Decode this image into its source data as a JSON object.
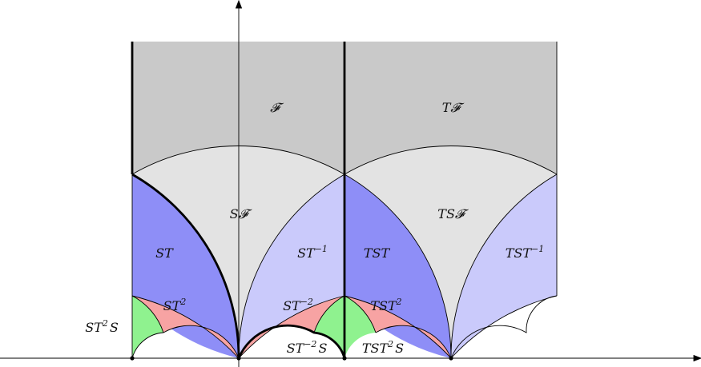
{
  "colors": {
    "fundamental_domain": "#c9c9c9",
    "s_images": "#e3e3e3",
    "st_dark": "#8e8ef7",
    "st_light": "#cacafb",
    "st_squared": "#f7a3a3",
    "st_squared_s": "#8ff28f",
    "boundary_stroke": "#000000",
    "axis_stroke": "#000000"
  },
  "regions": [
    {
      "id": "F",
      "label": "𝓕",
      "fill": "fundamental_domain"
    },
    {
      "id": "TF",
      "label": "T𝓕",
      "fill": "fundamental_domain"
    },
    {
      "id": "SF",
      "label": "S𝓕",
      "fill": "s_images"
    },
    {
      "id": "TSF",
      "label": "TS𝓕",
      "fill": "s_images"
    },
    {
      "id": "ST",
      "label": "ST",
      "fill": "st_dark"
    },
    {
      "id": "ST-1",
      "label": "ST",
      "sup": "−1",
      "fill": "st_light"
    },
    {
      "id": "TST",
      "label": "TST",
      "fill": "st_dark"
    },
    {
      "id": "TST-1",
      "label": "TST",
      "sup": "−1",
      "fill": "st_light"
    },
    {
      "id": "ST2",
      "label": "ST",
      "sup": "2",
      "fill": "st_squared"
    },
    {
      "id": "ST-2",
      "label": "ST",
      "sup": "−2",
      "fill": "st_squared"
    },
    {
      "id": "TST2",
      "label": "TST",
      "sup": "2",
      "fill": "st_squared"
    },
    {
      "id": "ST2S",
      "label": "ST",
      "sup": "2",
      "tail": "S",
      "fill": "st_squared_s"
    },
    {
      "id": "ST-2S",
      "label": "ST",
      "sup": "−2",
      "tail": "S",
      "fill": "st_squared_s"
    },
    {
      "id": "TST2S",
      "label": "TST",
      "sup": "2",
      "tail": "S",
      "fill": "st_squared_s"
    }
  ]
}
